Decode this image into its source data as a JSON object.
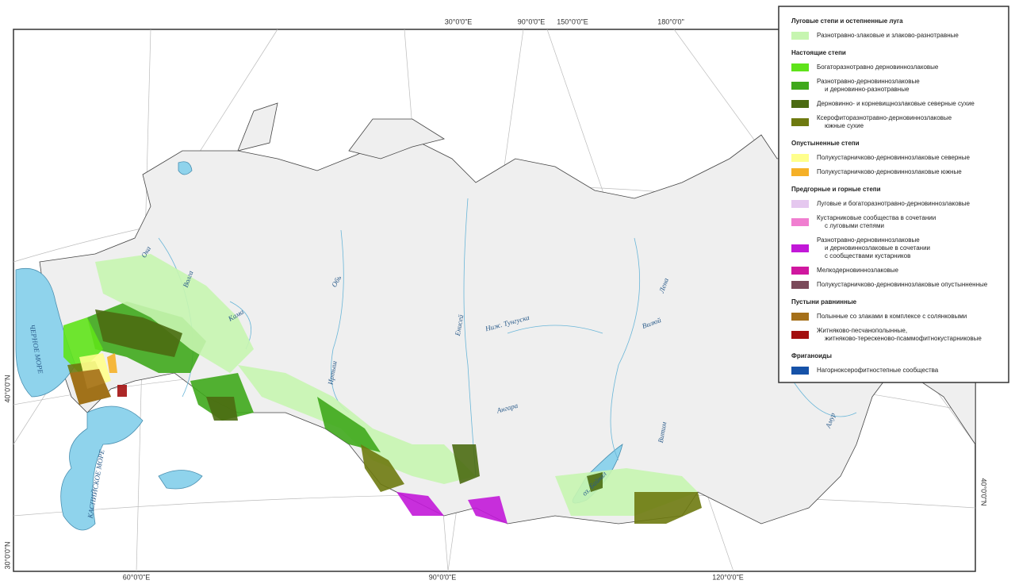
{
  "map": {
    "graticule_labels": [
      "30°0'0\"E",
      "90°0'0\"E",
      "150°0'0\"E",
      "180°0'0\"",
      "60°0'0\"E",
      "90°0'0\"E",
      "120°0'0\"E",
      "40°0'0\"N",
      "30°0'0\"N",
      "40°0'0\"N"
    ],
    "labels": [
      "Ока",
      "Волга",
      "Кама",
      "Обь",
      "Иртыш",
      "Енисей",
      "Ниж. Тунгуска",
      "Вилюй",
      "Лена",
      "Ангара",
      "Витим",
      "Амур",
      "оз. Байкал",
      "ЧЕРНОЕ МОРЕ",
      "КАСПИЙСКОЕ МОРЕ"
    ]
  },
  "legend": {
    "groups": [
      {
        "title": "Луговые степи и остепненные луга",
        "items": [
          {
            "color": "#c6f5b0",
            "label": [
              "Разнотравно-злаковые и злаково-разнотравные"
            ]
          }
        ]
      },
      {
        "title": "Настоящие степи",
        "items": [
          {
            "color": "#5fe31a",
            "label": [
              "Богаторазнотравно дерновиннозлаковые"
            ]
          },
          {
            "color": "#3fa81c",
            "label": [
              "Разнотравно-дерновиннозлаковые",
              "и дерновинно-разнотравные"
            ]
          },
          {
            "color": "#4b6b12",
            "label": [
              "Дерновинно- и корневищнозлаковые северные сухие"
            ]
          },
          {
            "color": "#6e7a10",
            "label": [
              "Ксерофиторазнотравно-дерновиннозлаковые",
              "южные сухие"
            ]
          }
        ]
      },
      {
        "title": "Опустыненные степи",
        "items": [
          {
            "color": "#ffff8c",
            "label": [
              "Полукустарничково-дерновиннозлаковые северные"
            ]
          },
          {
            "color": "#f5b027",
            "label": [
              "Полукустарничково-дерновиннозлаковые южные"
            ]
          }
        ]
      },
      {
        "title": "Предгорные и горные степи",
        "items": [
          {
            "color": "#e5c8ef",
            "label": [
              "Луговые и богаторазнотравно-дерновиннозлаковые"
            ]
          },
          {
            "color": "#f07ed0",
            "label": [
              "Кустарниковые сообщества в сочетании",
              "с луговыми степями"
            ]
          },
          {
            "color": "#c218d8",
            "label": [
              "Разнотравно-дерновиннозлаковые",
              "и дерновиннозлаковые в сочетании",
              "с сообществами кустарников"
            ]
          },
          {
            "color": "#d0179f",
            "label": [
              "Мелкодерновиннозлаковые"
            ]
          },
          {
            "color": "#7b4a5a",
            "label": [
              "Полукустарничково-дерновиннозлаковые опустынненные"
            ]
          }
        ]
      },
      {
        "title": "Пустыни равнинные",
        "items": [
          {
            "color": "#a5701a",
            "label": [
              "Полынные со злаками в комплексе с солянковыми"
            ]
          },
          {
            "color": "#a30f0f",
            "label": [
              "Житняково-песчанополынные,",
              "житняково-терескеново-псаммофитнокустарниковые"
            ]
          }
        ]
      },
      {
        "title": "Фриганоиды",
        "items": [
          {
            "color": "#1652a8",
            "label": [
              "Нагорноксерофитностепные сообщества"
            ]
          }
        ]
      }
    ]
  }
}
